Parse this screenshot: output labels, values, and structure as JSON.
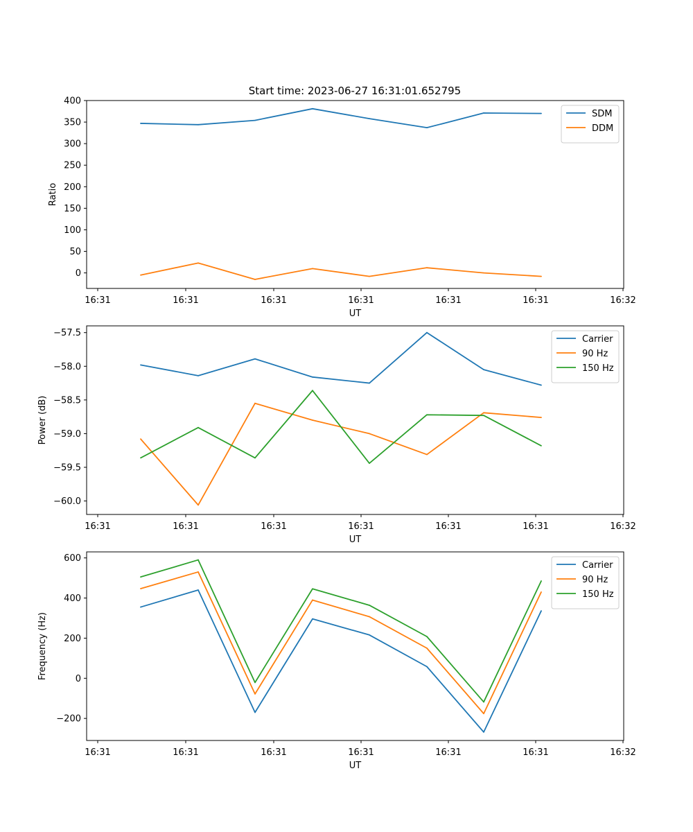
{
  "title": "Start time: 2023-06-27 16:31:01.652795",
  "colors": {
    "blue": "#1f77b4",
    "orange": "#ff7f0e",
    "green": "#2ca02c"
  },
  "chart_data": [
    {
      "type": "line",
      "title": "Start time: 2023-06-27 16:31:01.652795",
      "xlabel": "UT",
      "ylabel": "Ratio",
      "xticks": [
        "16:31",
        "16:31",
        "16:31",
        "16:31",
        "16:31",
        "16:31",
        "16:32"
      ],
      "yticks": [
        "0",
        "50",
        "100",
        "150",
        "200",
        "250",
        "300",
        "350",
        "400"
      ],
      "ylim": [
        -36,
        400
      ],
      "legend": "top-right",
      "series": [
        {
          "name": "SDM",
          "color": "#1f77b4",
          "values": [
            347,
            344,
            354,
            381,
            358,
            337,
            371,
            370
          ]
        },
        {
          "name": "DDM",
          "color": "#ff7f0e",
          "values": [
            -5,
            23,
            -15,
            10,
            -8,
            12,
            0,
            -8
          ]
        }
      ]
    },
    {
      "type": "line",
      "xlabel": "UT",
      "ylabel": "Power (dB)",
      "xticks": [
        "16:31",
        "16:31",
        "16:31",
        "16:31",
        "16:31",
        "16:31",
        "16:32"
      ],
      "yticks": [
        "−60.0",
        "−59.5",
        "−59.0",
        "−58.5",
        "−58.0",
        "−57.5"
      ],
      "ylim": [
        -60.2,
        -57.4
      ],
      "legend": "top-right",
      "series": [
        {
          "name": "Carrier",
          "color": "#1f77b4",
          "values": [
            -57.98,
            -58.14,
            -57.89,
            -58.16,
            -58.25,
            -57.5,
            -58.05,
            -58.28
          ]
        },
        {
          "name": "90 Hz",
          "color": "#ff7f0e",
          "values": [
            -59.08,
            -60.06,
            -58.55,
            -58.8,
            -59.0,
            -59.31,
            -58.69,
            -58.76
          ]
        },
        {
          "name": "150 Hz",
          "color": "#2ca02c",
          "values": [
            -59.36,
            -58.91,
            -59.36,
            -58.36,
            -59.44,
            -58.72,
            -58.73,
            -59.18
          ]
        }
      ]
    },
    {
      "type": "line",
      "xlabel": "UT",
      "ylabel": "Frequency (Hz)",
      "xticks": [
        "16:31",
        "16:31",
        "16:31",
        "16:31",
        "16:31",
        "16:31",
        "16:32"
      ],
      "yticks": [
        "−200",
        "0",
        "200",
        "400",
        "600"
      ],
      "ylim": [
        -310,
        630
      ],
      "legend": "top-right",
      "series": [
        {
          "name": "Carrier",
          "color": "#1f77b4",
          "values": [
            355,
            440,
            -170,
            296,
            216,
            58,
            -268,
            336
          ]
        },
        {
          "name": "90 Hz",
          "color": "#ff7f0e",
          "values": [
            447,
            530,
            -78,
            390,
            307,
            150,
            -176,
            430
          ]
        },
        {
          "name": "150 Hz",
          "color": "#2ca02c",
          "values": [
            505,
            590,
            -21,
            446,
            364,
            208,
            -118,
            485
          ]
        }
      ]
    }
  ]
}
